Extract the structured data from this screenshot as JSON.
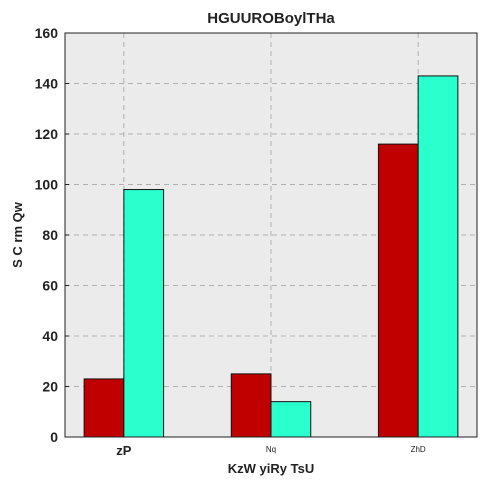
{
  "chart_data": {
    "type": "bar",
    "title": "HGUUROBoylTHa",
    "xlabel": "KzW yiRy TsU",
    "ylabel": "S C rm Qw",
    "categories": [
      "zP",
      "Nq",
      "ZhD"
    ],
    "series": [
      {
        "values": [
          23,
          25,
          116
        ],
        "color": "#c00000"
      },
      {
        "values": [
          98,
          14,
          143
        ],
        "color": "#2affce"
      }
    ],
    "ylim": [
      0,
      160
    ],
    "yticks": [
      0,
      20,
      40,
      60,
      80,
      100,
      120,
      140,
      160
    ],
    "grid": true,
    "legend": "none",
    "colors": {
      "background": "#ebebeb",
      "grid": "#b0b0b0"
    }
  }
}
